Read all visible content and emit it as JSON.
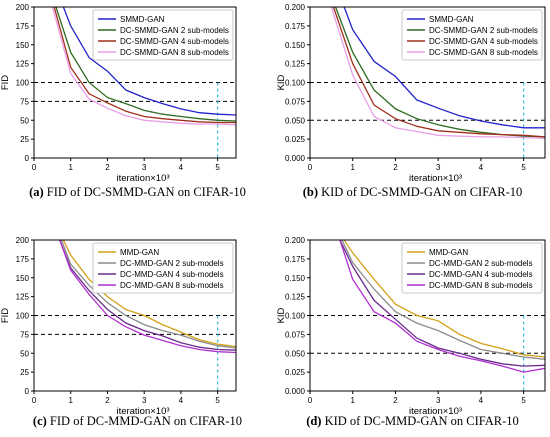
{
  "chart_data": [
    {
      "type": "line",
      "caption_label": "(a)",
      "caption_text": "FID of DC-SMMD-GAN on CIFAR-10",
      "xlabel": "iteration×10³",
      "ylabel": "FID",
      "xlim": [
        0,
        5.5
      ],
      "ylim": [
        0,
        200
      ],
      "xticks": [
        0,
        1,
        2,
        3,
        4,
        5
      ],
      "yticks": [
        0,
        25,
        50,
        75,
        100,
        125,
        150,
        175,
        200
      ],
      "ytick_labels": [
        "0",
        "25",
        "50",
        "75",
        "100",
        "125",
        "150",
        "175",
        "200"
      ],
      "hlines": [
        100,
        75
      ],
      "vline": 5,
      "legend_loc": "upper-right",
      "series": [
        {
          "name": "SMMD-GAN",
          "color": "#2222cc",
          "x": [
            0.8,
            1.0,
            1.5,
            2.0,
            2.5,
            3.0,
            3.5,
            4.0,
            4.5,
            5.0,
            5.5
          ],
          "y": [
            200,
            175,
            133,
            115,
            90,
            80,
            72,
            65,
            60,
            58,
            57
          ]
        },
        {
          "name": "DC-SMMD-GAN 2 sub-models",
          "color": "#2e6b1f",
          "x": [
            0.6,
            1.0,
            1.5,
            2.0,
            2.5,
            3.0,
            3.5,
            4.0,
            4.5,
            5.0,
            5.5
          ],
          "y": [
            200,
            140,
            100,
            80,
            72,
            63,
            58,
            55,
            52,
            50,
            49
          ]
        },
        {
          "name": "DC-SMMD-GAN 4 sub-models",
          "color": "#a0301c",
          "x": [
            0.55,
            1.0,
            1.5,
            2.0,
            2.5,
            3.0,
            3.5,
            4.0,
            4.5,
            5.0,
            5.5
          ],
          "y": [
            200,
            120,
            85,
            73,
            62,
            55,
            52,
            50,
            48,
            47,
            47
          ]
        },
        {
          "name": "DC-SMMD-GAN 8 sub-models",
          "color": "#e8a0e8",
          "x": [
            0.5,
            1.0,
            1.5,
            2.0,
            2.5,
            3.0,
            3.5,
            4.0,
            4.5,
            5.0,
            5.5
          ],
          "y": [
            200,
            112,
            78,
            66,
            56,
            50,
            48,
            46,
            45,
            45,
            44
          ]
        }
      ]
    },
    {
      "type": "line",
      "caption_label": "(b)",
      "caption_text": "KID of DC-SMMD-GAN on CIFAR-10",
      "xlabel": "iteration×10³",
      "ylabel": "KID",
      "xlim": [
        0,
        5.5
      ],
      "ylim": [
        0,
        0.2
      ],
      "xticks": [
        0,
        1,
        2,
        3,
        4,
        5
      ],
      "yticks": [
        0,
        0.025,
        0.05,
        0.075,
        0.1,
        0.125,
        0.15,
        0.175,
        0.2
      ],
      "ytick_labels": [
        "0.000",
        "0.025",
        "0.050",
        "0.075",
        "0.100",
        "0.125",
        "0.150",
        "0.175",
        "0.200"
      ],
      "hlines": [
        0.1,
        0.05
      ],
      "vline": 5,
      "legend_loc": "upper-right",
      "series": [
        {
          "name": "SMMD-GAN",
          "color": "#2222cc",
          "x": [
            0.8,
            1.0,
            1.5,
            2.0,
            2.5,
            3.0,
            3.5,
            4.0,
            4.5,
            5.0,
            5.5
          ],
          "y": [
            0.2,
            0.17,
            0.128,
            0.108,
            0.077,
            0.066,
            0.056,
            0.049,
            0.044,
            0.04,
            0.04
          ]
        },
        {
          "name": "DC-SMMD-GAN 2 sub-models",
          "color": "#2e6b1f",
          "x": [
            0.6,
            1.0,
            1.5,
            2.0,
            2.5,
            3.0,
            3.5,
            4.0,
            4.5,
            5.0,
            5.5
          ],
          "y": [
            0.2,
            0.14,
            0.09,
            0.065,
            0.052,
            0.044,
            0.038,
            0.034,
            0.031,
            0.029,
            0.028
          ]
        },
        {
          "name": "DC-SMMD-GAN 4 sub-models",
          "color": "#a0301c",
          "x": [
            0.55,
            1.0,
            1.5,
            2.0,
            2.5,
            3.0,
            3.5,
            4.0,
            4.5,
            5.0,
            5.5
          ],
          "y": [
            0.2,
            0.125,
            0.07,
            0.052,
            0.042,
            0.036,
            0.034,
            0.032,
            0.031,
            0.03,
            0.028
          ]
        },
        {
          "name": "DC-SMMD-GAN 8 sub-models",
          "color": "#e8a0e8",
          "x": [
            0.5,
            1.0,
            1.5,
            2.0,
            2.5,
            3.0,
            3.5,
            4.0,
            4.5,
            5.0,
            5.5
          ],
          "y": [
            0.2,
            0.11,
            0.055,
            0.04,
            0.035,
            0.03,
            0.029,
            0.028,
            0.028,
            0.027,
            0.026
          ]
        }
      ]
    },
    {
      "type": "line",
      "caption_label": "(c)",
      "caption_text": "FID of DC-MMD-GAN on CIFAR-10",
      "xlabel": "iteration×10³",
      "ylabel": "FID",
      "xlim": [
        0,
        5.5
      ],
      "ylim": [
        0,
        200
      ],
      "xticks": [
        0,
        1,
        2,
        3,
        4,
        5
      ],
      "yticks": [
        0,
        25,
        50,
        75,
        100,
        125,
        150,
        175,
        200
      ],
      "ytick_labels": [
        "0",
        "25",
        "50",
        "75",
        "100",
        "125",
        "150",
        "175",
        "200"
      ],
      "hlines": [
        100,
        75
      ],
      "vline": 5,
      "legend_loc": "upper-right",
      "series": [
        {
          "name": "MMD-GAN",
          "color": "#d4a017",
          "x": [
            0.8,
            1.0,
            1.5,
            2.0,
            2.5,
            3.0,
            3.5,
            4.0,
            4.5,
            5.0,
            5.5
          ],
          "y": [
            200,
            180,
            148,
            125,
            108,
            100,
            88,
            78,
            68,
            62,
            59
          ]
        },
        {
          "name": "DC-MMD-GAN 2 sub-models",
          "color": "#8c8c8c",
          "x": [
            0.75,
            1.0,
            1.5,
            2.0,
            2.5,
            3.0,
            3.5,
            4.0,
            4.5,
            5.0,
            5.5
          ],
          "y": [
            200,
            168,
            140,
            117,
            100,
            88,
            80,
            74,
            66,
            60,
            57
          ]
        },
        {
          "name": "DC-MMD-GAN 4 sub-models",
          "color": "#6a2c8c",
          "x": [
            0.7,
            1.0,
            1.5,
            2.0,
            2.5,
            3.0,
            3.5,
            4.0,
            4.5,
            5.0,
            5.5
          ],
          "y": [
            200,
            163,
            133,
            108,
            90,
            80,
            73,
            64,
            58,
            55,
            54
          ]
        },
        {
          "name": "DC-MMD-GAN 8 sub-models",
          "color": "#b030d0",
          "x": [
            0.7,
            1.0,
            1.5,
            2.0,
            2.5,
            3.0,
            3.5,
            4.0,
            4.5,
            5.0,
            5.5
          ],
          "y": [
            200,
            160,
            128,
            100,
            85,
            74,
            67,
            60,
            55,
            52,
            51
          ]
        }
      ]
    },
    {
      "type": "line",
      "caption_label": "(d)",
      "caption_text": "KID of DC-MMD-GAN on CIFAR-10",
      "xlabel": "iteration×10³",
      "ylabel": "KID",
      "xlim": [
        0,
        5.5
      ],
      "ylim": [
        0,
        0.2
      ],
      "xticks": [
        0,
        1,
        2,
        3,
        4,
        5
      ],
      "yticks": [
        0,
        0.025,
        0.05,
        0.075,
        0.1,
        0.125,
        0.15,
        0.175,
        0.2
      ],
      "ytick_labels": [
        "0.000",
        "0.025",
        "0.050",
        "0.075",
        "0.100",
        "0.125",
        "0.150",
        "0.175",
        "0.200"
      ],
      "hlines": [
        0.1,
        0.05
      ],
      "vline": 5,
      "legend_loc": "upper-right",
      "series": [
        {
          "name": "MMD-GAN",
          "color": "#d4a017",
          "x": [
            0.8,
            1.0,
            1.5,
            2.0,
            2.5,
            3.0,
            3.5,
            4.0,
            4.5,
            5.0,
            5.5
          ],
          "y": [
            0.2,
            0.183,
            0.148,
            0.115,
            0.1,
            0.093,
            0.075,
            0.063,
            0.056,
            0.048,
            0.045
          ]
        },
        {
          "name": "DC-MMD-GAN 2 sub-models",
          "color": "#8c8c8c",
          "x": [
            0.75,
            1.0,
            1.5,
            2.0,
            2.5,
            3.0,
            3.5,
            4.0,
            4.5,
            5.0,
            5.5
          ],
          "y": [
            0.2,
            0.17,
            0.135,
            0.105,
            0.09,
            0.08,
            0.067,
            0.055,
            0.05,
            0.045,
            0.042
          ]
        },
        {
          "name": "DC-MMD-GAN 4 sub-models",
          "color": "#6a2c8c",
          "x": [
            0.7,
            1.0,
            1.5,
            2.0,
            2.5,
            3.0,
            3.5,
            4.0,
            4.5,
            5.0,
            5.5
          ],
          "y": [
            0.2,
            0.165,
            0.12,
            0.095,
            0.07,
            0.057,
            0.05,
            0.042,
            0.036,
            0.033,
            0.034
          ]
        },
        {
          "name": "DC-MMD-GAN 8 sub-models",
          "color": "#b030d0",
          "x": [
            0.7,
            1.0,
            1.5,
            2.0,
            2.5,
            3.0,
            3.5,
            4.0,
            4.5,
            5.0,
            5.5
          ],
          "y": [
            0.2,
            0.148,
            0.105,
            0.09,
            0.066,
            0.055,
            0.046,
            0.04,
            0.033,
            0.025,
            0.03
          ]
        }
      ]
    }
  ]
}
